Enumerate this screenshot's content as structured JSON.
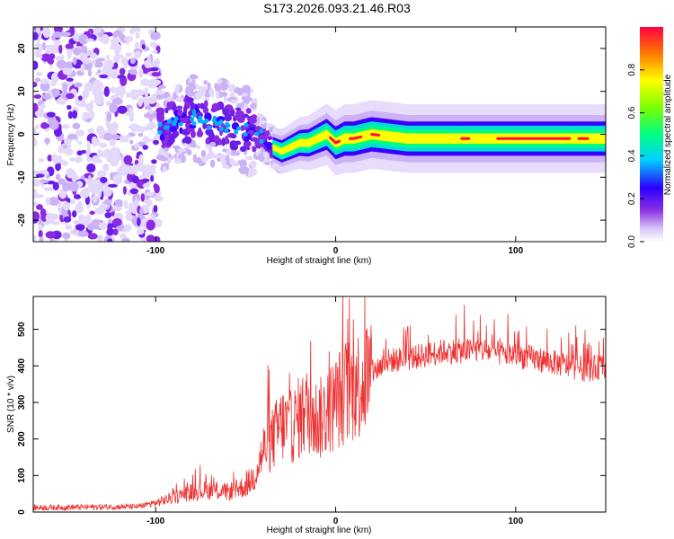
{
  "title": "S173.2026.093.21.46.R03",
  "chart_data": [
    {
      "type": "heatmap",
      "name": "spectrogram",
      "xlabel": "Height of straight line (km)",
      "ylabel": "Frequency (Hz)",
      "xlim": [
        -168,
        150
      ],
      "ylim": [
        -25,
        25
      ],
      "x_ticks": [
        "-100",
        "0",
        "100"
      ],
      "y_ticks": [
        "-20",
        "-10",
        "0",
        "10",
        "20"
      ],
      "x_tick_values": [
        -100,
        0,
        100
      ],
      "y_tick_values": [
        -20,
        -10,
        0,
        10,
        20
      ],
      "ridge": {
        "x": [
          -100,
          -90,
          -80,
          -70,
          -60,
          -50,
          -40,
          -35,
          -30,
          -25,
          -20,
          -15,
          -10,
          -5,
          0,
          5,
          10,
          20,
          40,
          60,
          80,
          100,
          120,
          150
        ],
        "y": [
          1,
          2,
          4,
          3,
          2,
          1,
          -1,
          -3,
          -4,
          -3,
          -2,
          -2,
          -1,
          0,
          -2,
          -1,
          -1,
          0,
          -1,
          -1,
          -1,
          -1,
          -1,
          -1
        ]
      },
      "colorbar": {
        "label": "Normalized spectral amplitude",
        "ticks": [
          "0.0",
          "0.2",
          "0.4",
          "0.6",
          "0.8"
        ],
        "tick_values": [
          0.0,
          0.2,
          0.4,
          0.6,
          0.8
        ],
        "range": [
          0,
          1
        ]
      }
    },
    {
      "type": "line",
      "name": "snr",
      "xlabel": "Height of straight line (km)",
      "ylabel": "SNR (10 * v/v)",
      "xlim": [
        -168,
        150
      ],
      "ylim": [
        0,
        590
      ],
      "x_ticks": [
        "-100",
        "0",
        "100"
      ],
      "y_ticks": [
        "0",
        "100",
        "200",
        "300",
        "400",
        "500"
      ],
      "x_tick_values": [
        -100,
        0,
        100
      ],
      "y_tick_values": [
        0,
        100,
        200,
        300,
        400,
        500
      ],
      "color": "#ee3333",
      "envelope": {
        "x": [
          -168,
          -110,
          -100,
          -90,
          -80,
          -70,
          -60,
          -50,
          -45,
          -40,
          -35,
          -30,
          -25,
          -20,
          -15,
          -10,
          -5,
          0,
          5,
          10,
          15,
          20,
          25,
          30,
          40,
          50,
          60,
          70,
          80,
          90,
          100,
          110,
          120,
          130,
          140,
          150
        ],
        "y": [
          12,
          15,
          25,
          40,
          55,
          60,
          55,
          70,
          100,
          170,
          200,
          240,
          230,
          260,
          280,
          250,
          270,
          300,
          330,
          340,
          360,
          380,
          400,
          415,
          420,
          430,
          440,
          440,
          445,
          435,
          430,
          420,
          410,
          400,
          390,
          400
        ]
      }
    }
  ]
}
